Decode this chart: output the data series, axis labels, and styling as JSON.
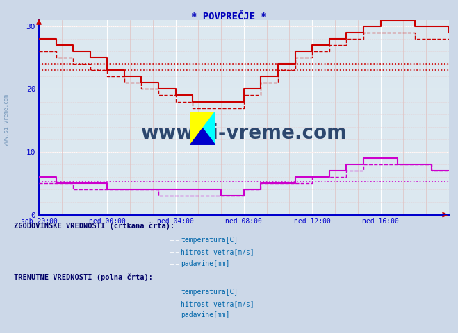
{
  "title": "* POVPREČJE *",
  "bg_color": "#ccd8e8",
  "plot_bg_color": "#dce8f0",
  "grid_color_white": "#ffffff",
  "grid_color_pink": "#e8c8c8",
  "xlabel_color": "#0000bb",
  "title_color": "#0000bb",
  "watermark": "www.si-vreme.com",
  "watermark_color": "#1a3560",
  "x_labels": [
    "sob 20:00",
    "ned 00:00",
    "ned 04:00",
    "ned 08:00",
    "ned 12:00",
    "ned 16:00"
  ],
  "x_ticks": [
    0,
    24,
    48,
    72,
    96,
    120
  ],
  "ylim": [
    0,
    31
  ],
  "yticks": [
    0,
    10,
    20,
    30
  ],
  "total_points": 144,
  "temp_color": "#cc0000",
  "wind_color": "#cc00cc",
  "precip_color": "#0000cc",
  "axis_color": "#0000cc",
  "legend_header_color": "#000066",
  "legend_item_color": "#0066aa",
  "sidebar_color": "#7799bb",
  "horiz_red1": 24.0,
  "horiz_red2": 23.0,
  "horiz_mag": 5.2,
  "temp_times": [
    0,
    6,
    12,
    18,
    24,
    30,
    36,
    42,
    48,
    54,
    60,
    66,
    72,
    78,
    84,
    90,
    96,
    102,
    108,
    114,
    120,
    126,
    132,
    138,
    144
  ],
  "temp_vals": [
    28,
    27,
    26,
    25,
    23,
    22,
    21,
    20,
    19,
    18,
    18,
    18,
    20,
    22,
    24,
    26,
    27,
    28,
    29,
    30,
    31,
    31,
    30,
    30,
    29
  ],
  "temp_d_times": [
    0,
    6,
    12,
    18,
    24,
    30,
    36,
    42,
    48,
    54,
    60,
    66,
    72,
    78,
    84,
    90,
    96,
    102,
    108,
    114,
    120,
    126,
    132,
    138,
    144
  ],
  "temp_d_vals": [
    26,
    25,
    24,
    23,
    22,
    21,
    20,
    19,
    18,
    17,
    17,
    17,
    19,
    21,
    23,
    25,
    26,
    27,
    28,
    29,
    29,
    29,
    28,
    28,
    28
  ],
  "wind_times": [
    0,
    6,
    12,
    18,
    24,
    30,
    36,
    42,
    48,
    54,
    60,
    64,
    68,
    72,
    78,
    84,
    90,
    96,
    102,
    108,
    114,
    120,
    126,
    132,
    138,
    144
  ],
  "wind_vals": [
    6,
    5,
    5,
    5,
    4,
    4,
    4,
    4,
    4,
    4,
    4,
    3,
    3,
    4,
    5,
    5,
    6,
    6,
    7,
    8,
    9,
    9,
    8,
    8,
    7,
    7
  ],
  "wind_d_times": [
    0,
    6,
    12,
    18,
    24,
    30,
    36,
    42,
    48,
    54,
    60,
    64,
    68,
    72,
    78,
    84,
    90,
    96,
    102,
    108,
    114,
    120,
    126,
    132,
    138,
    144
  ],
  "wind_d_vals": [
    5,
    5,
    4,
    4,
    4,
    4,
    4,
    3,
    3,
    3,
    3,
    3,
    3,
    4,
    5,
    5,
    5,
    6,
    6,
    7,
    8,
    8,
    8,
    8,
    7,
    7
  ]
}
